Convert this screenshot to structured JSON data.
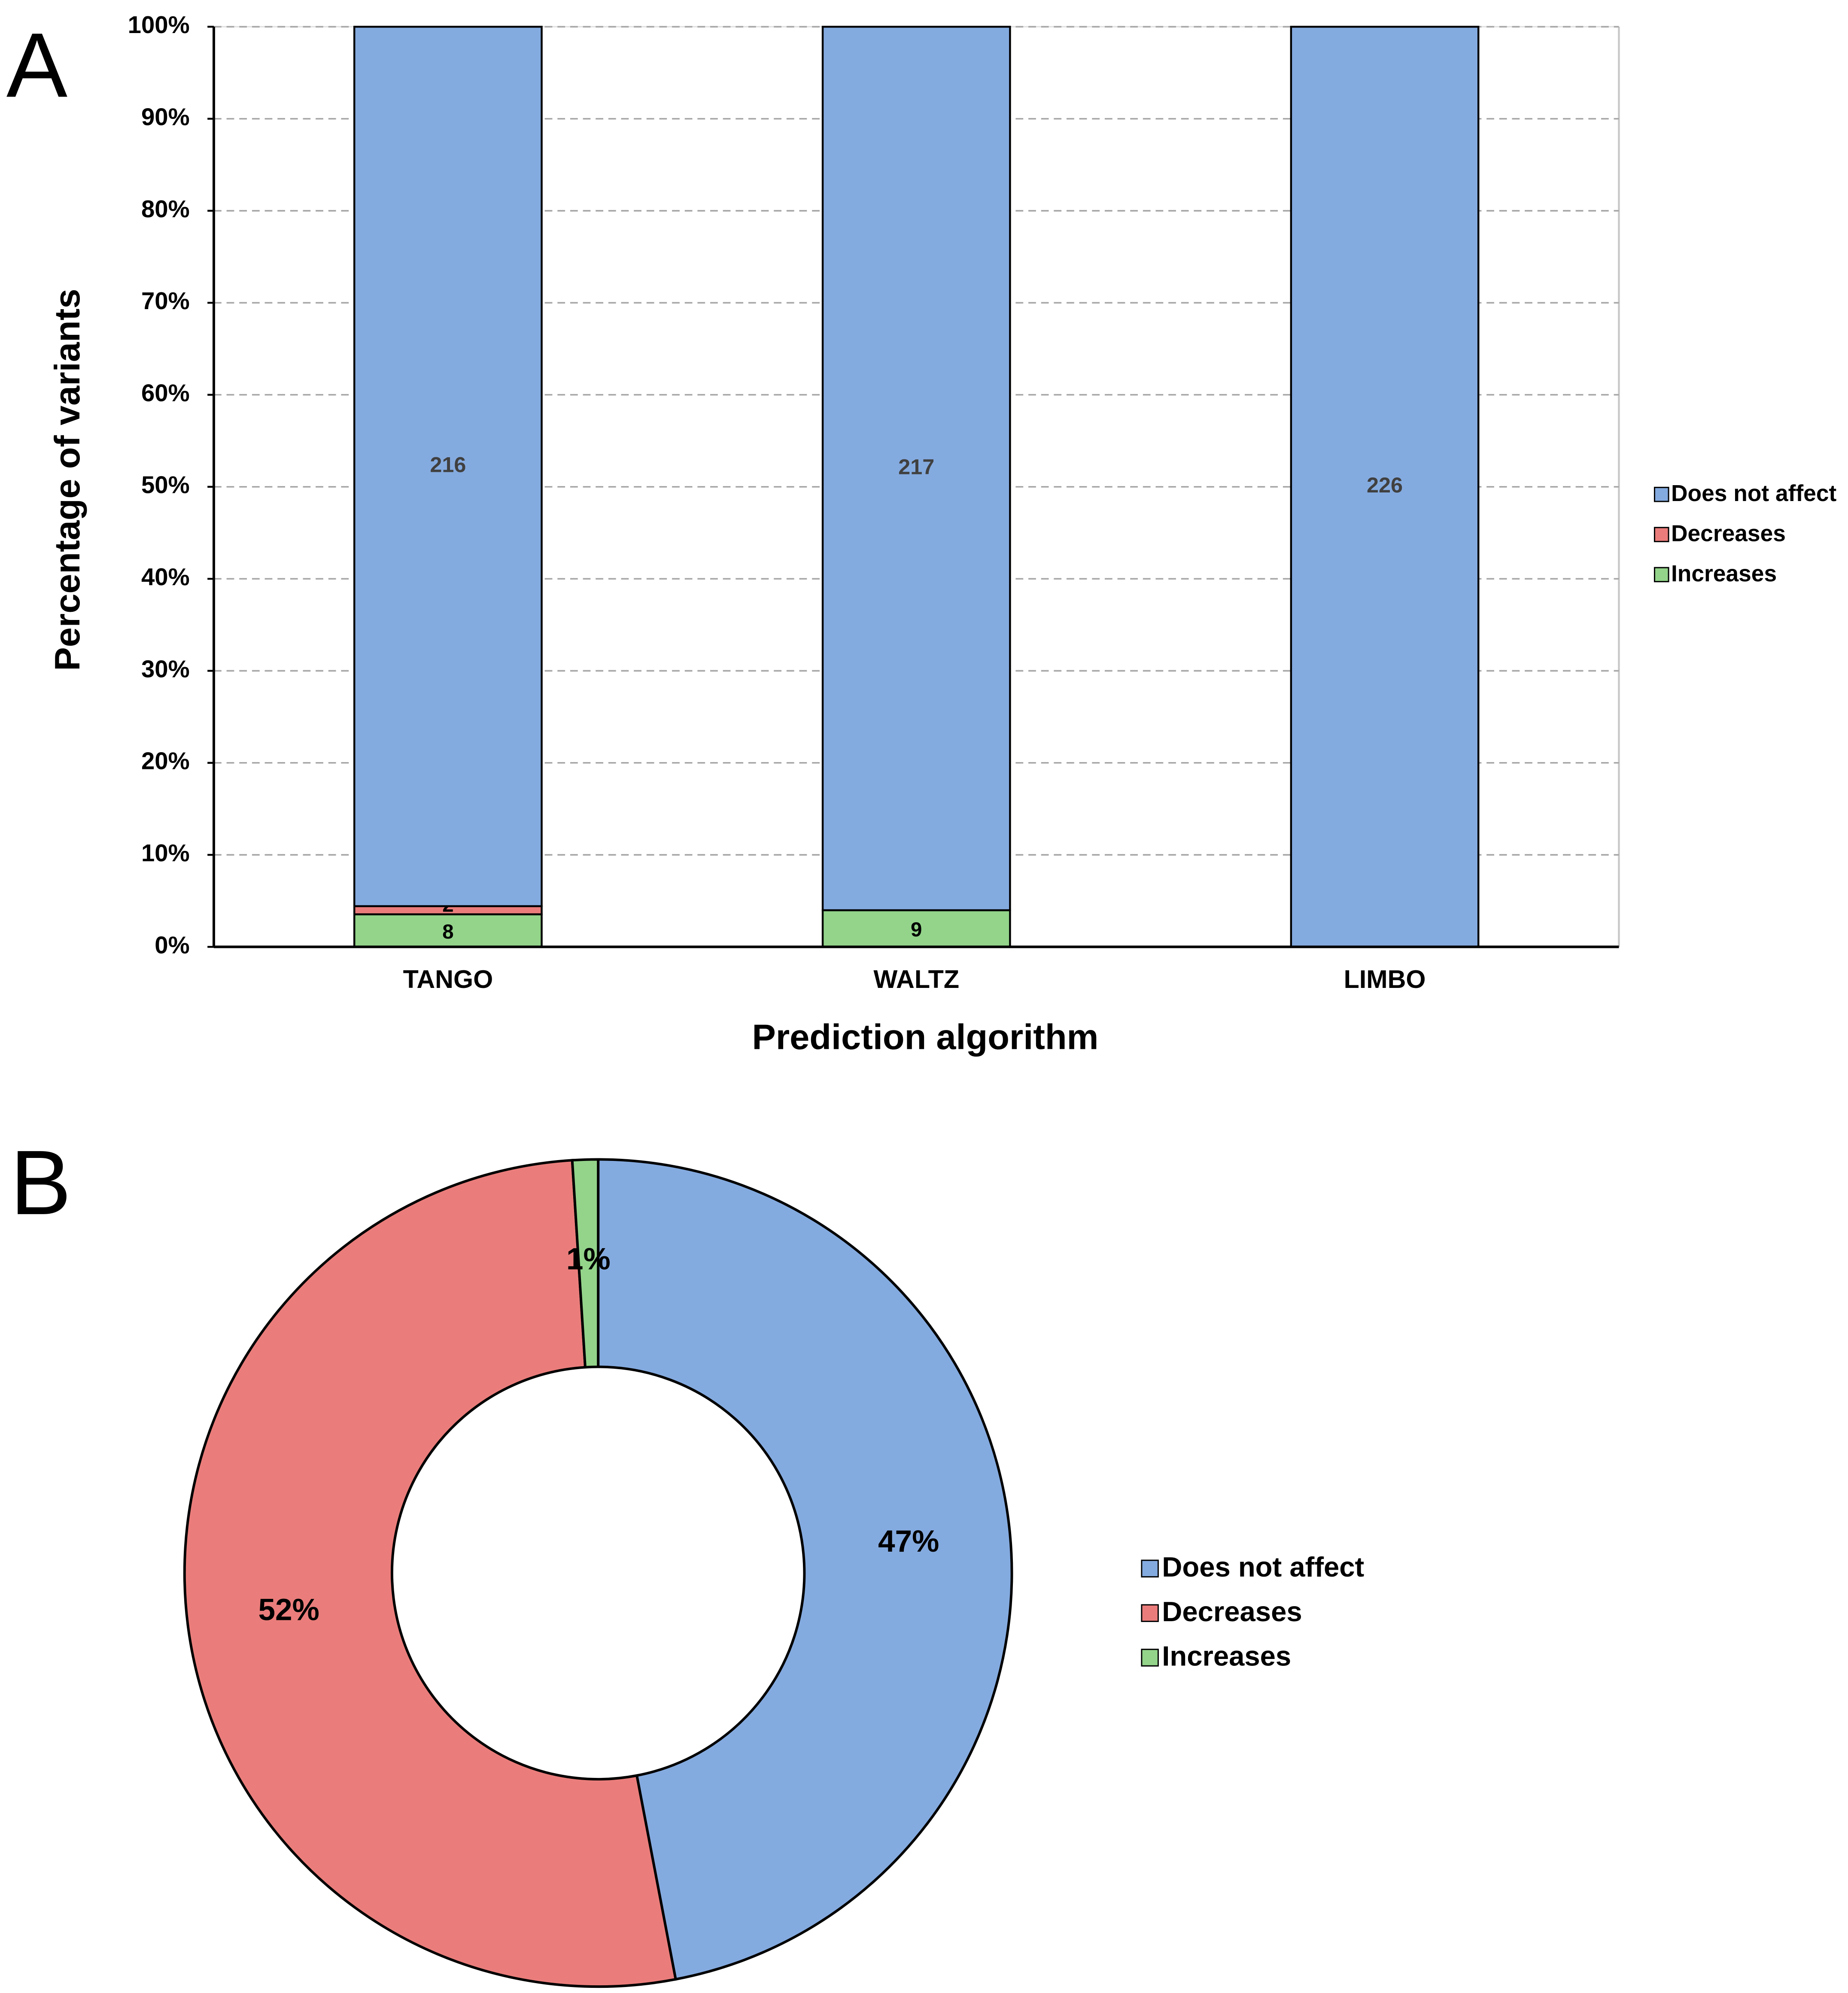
{
  "chart_data": [
    {
      "type": "bar",
      "stacking": "percent",
      "panel": "A",
      "x_label": "Prediction algorithm",
      "y_label": "Percentage of variants",
      "categories": [
        "TANGO",
        "WALTZ",
        "LIMBO"
      ],
      "series": [
        {
          "name": "Increases",
          "color": "#93d48a",
          "values": [
            8,
            9,
            0
          ]
        },
        {
          "name": "Decreases",
          "color": "#ea7d7b",
          "values": [
            2,
            0,
            0
          ]
        },
        {
          "name": "Does not affect",
          "color": "#84abe0",
          "values": [
            216,
            217,
            226
          ]
        }
      ],
      "ylim": [
        0,
        100
      ],
      "yticks": [
        {
          "value": 0,
          "label": "0%"
        },
        {
          "value": 10,
          "label": "10%"
        },
        {
          "value": 20,
          "label": "20%"
        },
        {
          "value": 30,
          "label": "30%"
        },
        {
          "value": 40,
          "label": "40%"
        },
        {
          "value": 50,
          "label": "50%"
        },
        {
          "value": 60,
          "label": "60%"
        },
        {
          "value": 70,
          "label": "70%"
        },
        {
          "value": 80,
          "label": "80%"
        },
        {
          "value": 90,
          "label": "90%"
        },
        {
          "value": 100,
          "label": "100%"
        }
      ],
      "grid": true,
      "legend": "right"
    },
    {
      "type": "donut",
      "panel": "B",
      "categories": [
        "Does not affect",
        "Decreases",
        "Increases"
      ],
      "values": [
        47,
        52,
        1
      ],
      "value_labels": [
        "47%",
        "52%",
        "1%"
      ],
      "colors": [
        "#84abe0",
        "#ea7d7b",
        "#93d48a"
      ],
      "legend": "right"
    }
  ]
}
